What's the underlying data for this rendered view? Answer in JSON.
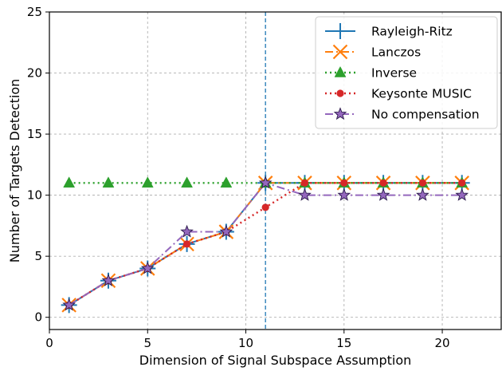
{
  "chart_data": {
    "type": "line",
    "title": "",
    "xlabel": "Dimension of Signal Subspace Assumption",
    "ylabel": "Number of Targets Detection",
    "xlim": [
      0,
      23
    ],
    "ylim": [
      -1,
      25
    ],
    "xticks": [
      0,
      5,
      10,
      15,
      20
    ],
    "yticks": [
      0,
      5,
      10,
      15,
      20,
      25
    ],
    "grid": true,
    "legend_position": "top-right",
    "vline_x": 11,
    "series": [
      {
        "name": "Rayleigh-Ritz",
        "color": "#1f77b4",
        "linestyle": "solid",
        "marker": "plus",
        "x": [
          1,
          3,
          5,
          7,
          9,
          11,
          13,
          15,
          17,
          19,
          21
        ],
        "y": [
          1,
          3,
          4,
          6,
          7,
          11,
          11,
          11,
          11,
          11,
          11
        ]
      },
      {
        "name": "Lanczos",
        "color": "#ff7f0e",
        "linestyle": "dashdot",
        "marker": "x",
        "x": [
          1,
          3,
          5,
          7,
          9,
          11,
          13,
          15,
          17,
          19,
          21
        ],
        "y": [
          1,
          3,
          4,
          6,
          7,
          11,
          11,
          11,
          11,
          11,
          11
        ]
      },
      {
        "name": "Inverse",
        "color": "#2ca02c",
        "linestyle": "dotted",
        "marker": "triangle",
        "x": [
          1,
          3,
          5,
          7,
          9,
          11,
          13,
          15,
          17,
          19,
          21
        ],
        "y": [
          11,
          11,
          11,
          11,
          11,
          11,
          11,
          11,
          11,
          11,
          11
        ]
      },
      {
        "name": "Keysonte MUSIC",
        "color": "#d62728",
        "linestyle": "dotted",
        "marker": "circle",
        "x": [
          1,
          3,
          5,
          7,
          9,
          11,
          13,
          15,
          17,
          19,
          21
        ],
        "y": [
          1,
          3,
          4,
          6,
          7,
          9,
          11,
          11,
          11,
          11,
          11
        ]
      },
      {
        "name": "No compensation",
        "color": "#9467bd",
        "linestyle": "dashdot",
        "marker": "star",
        "x": [
          1,
          3,
          5,
          7,
          9,
          11,
          13,
          15,
          17,
          19,
          21
        ],
        "y": [
          1,
          3,
          4,
          7,
          7,
          11,
          10,
          10,
          10,
          10,
          10
        ]
      }
    ]
  }
}
